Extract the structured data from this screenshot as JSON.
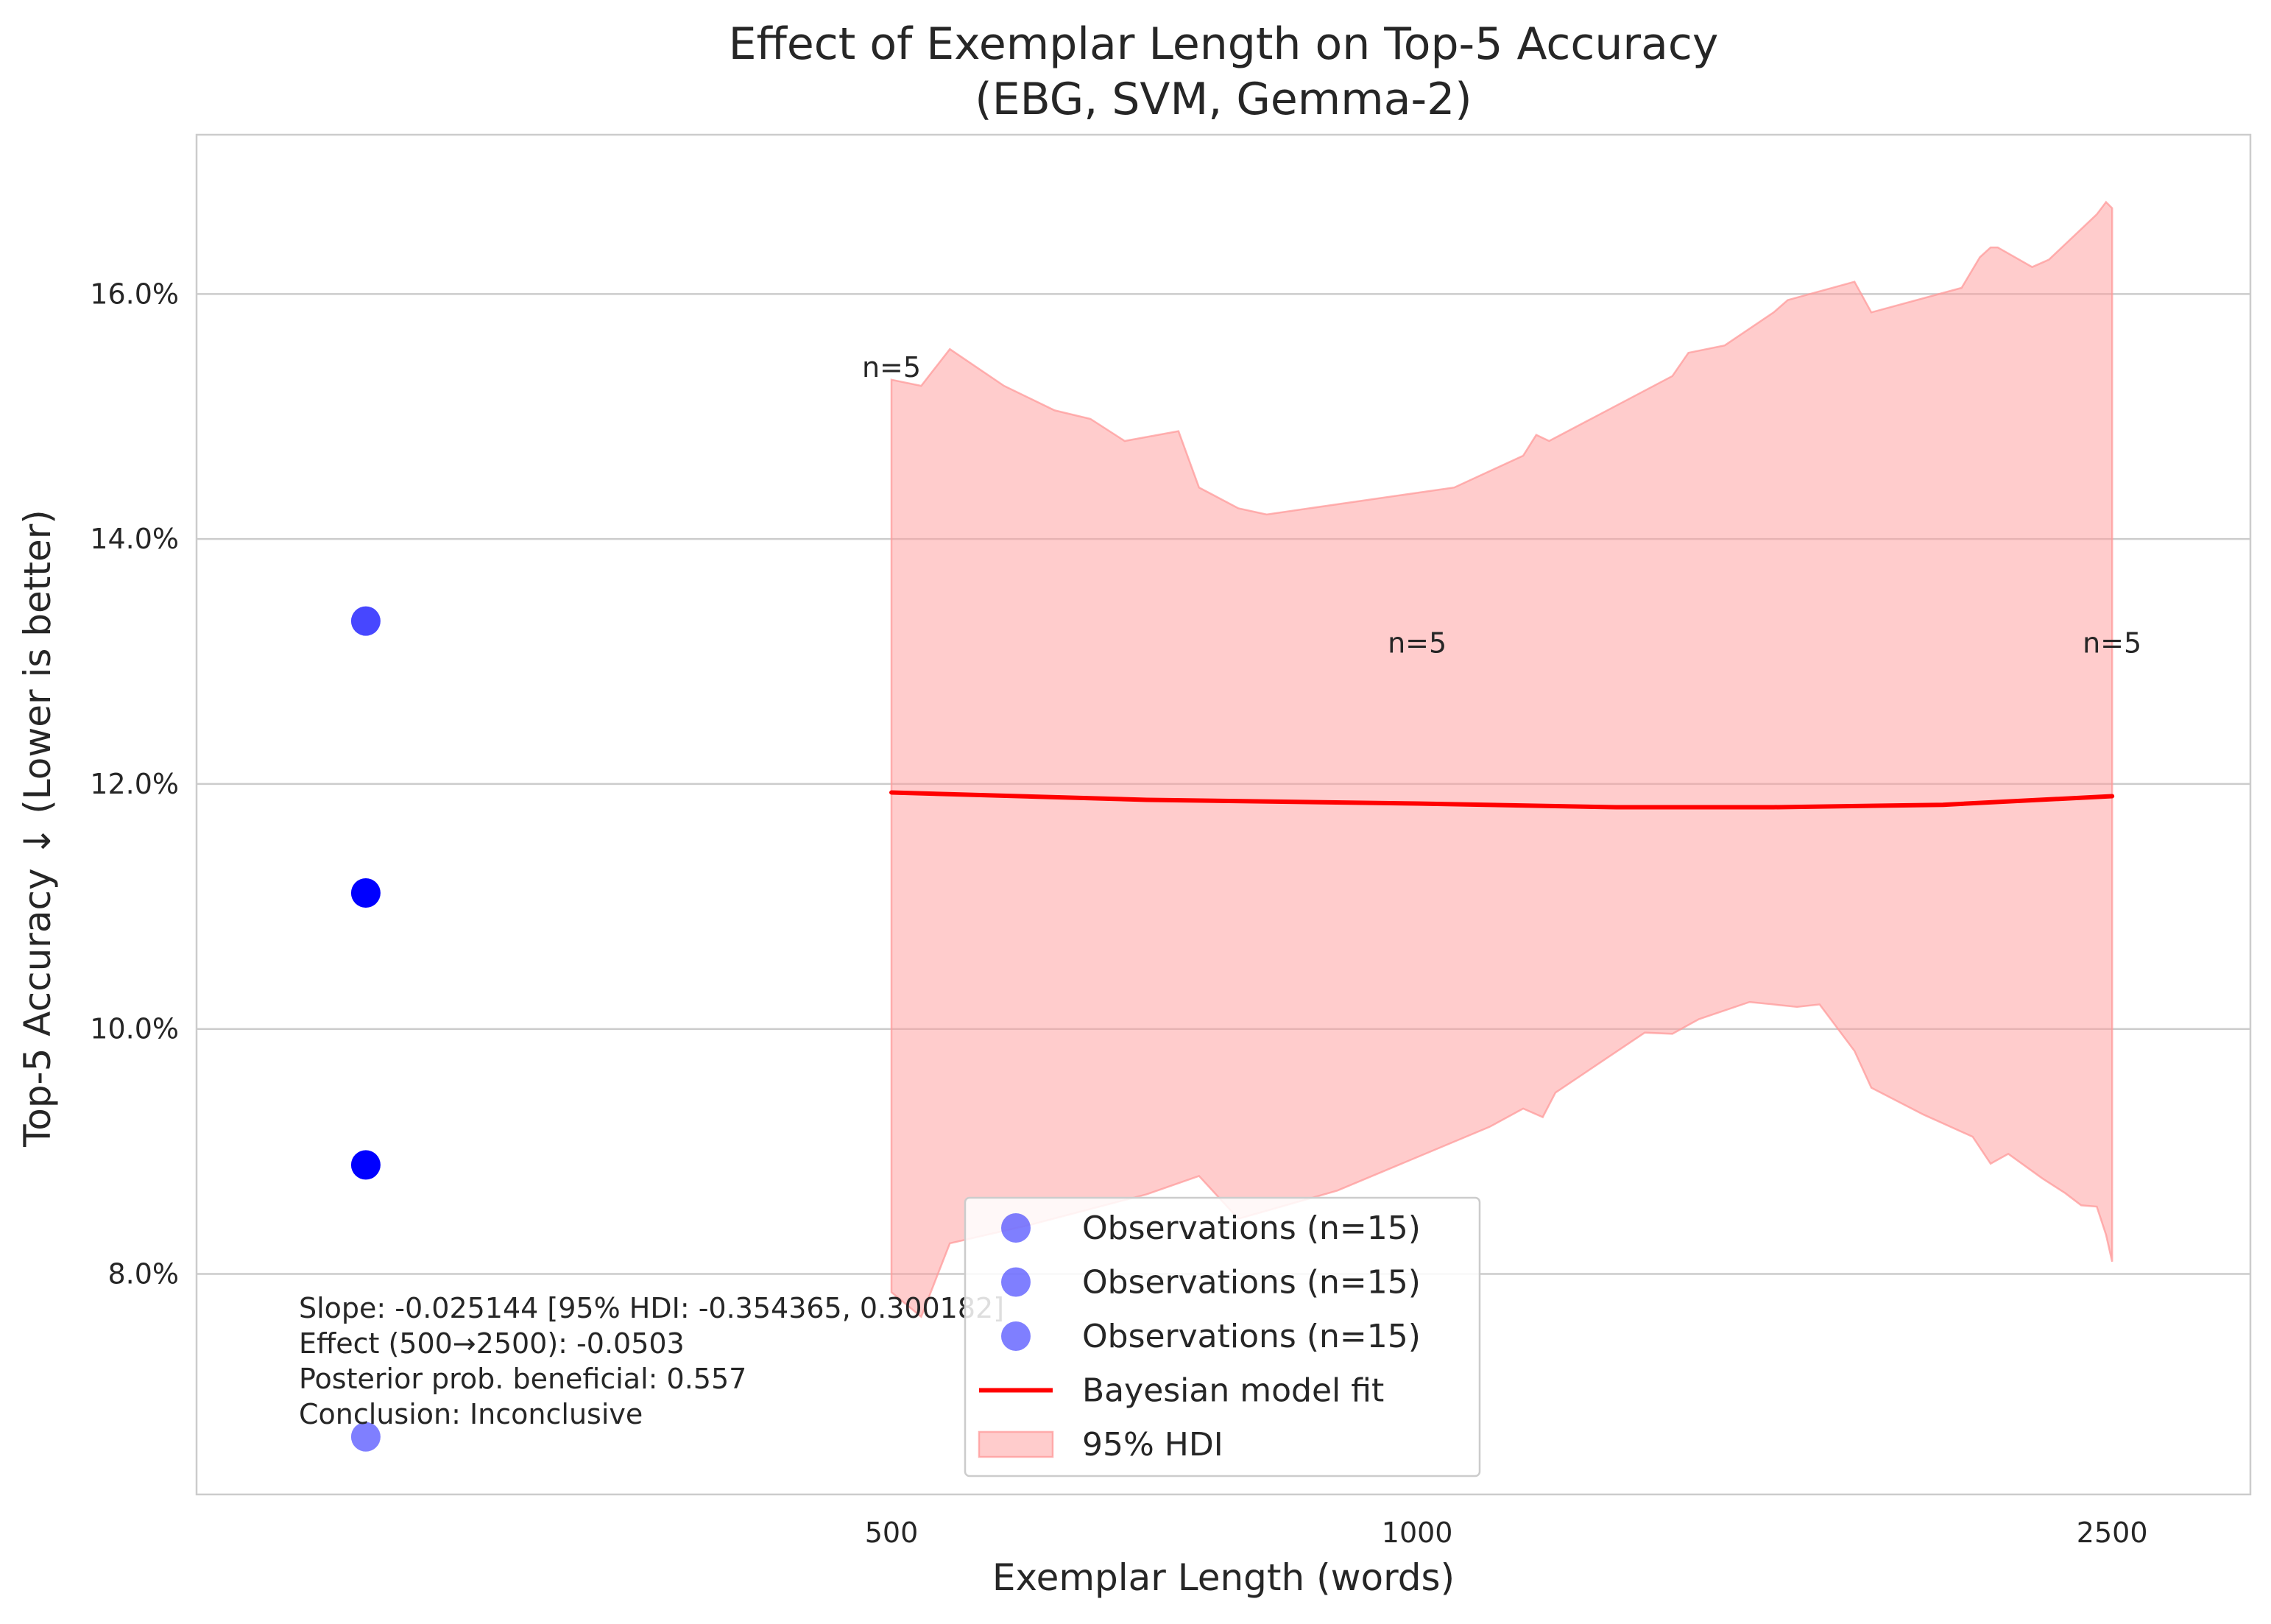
{
  "chart_data": {
    "type": "line",
    "title": "Effect of Exemplar Length on Top-5 Accuracy",
    "subtitle": "(EBG, SVM, Gemma-2)",
    "xlabel": "Exemplar Length (words)",
    "ylabel": "Top-5 Accuracy ↓ (Lower is better)",
    "x_scale": "log",
    "xlim": [
      200,
      3000
    ],
    "ylim": [
      6.2,
      17.3
    ],
    "x_ticks": [
      {
        "value": 500,
        "label": "500"
      },
      {
        "value": 1000,
        "label": "1000"
      },
      {
        "value": 2500,
        "label": "2500"
      }
    ],
    "y_ticks": [
      {
        "value": 8,
        "label": "8.0%"
      },
      {
        "value": 10,
        "label": "10.0%"
      },
      {
        "value": 12,
        "label": "12.0%"
      },
      {
        "value": 14,
        "label": "14.0%"
      },
      {
        "value": 16,
        "label": "16.0%"
      }
    ],
    "grid": "horizontal",
    "observations": {
      "x": 250,
      "points": [
        {
          "y": 13.33,
          "opacity": 0.72
        },
        {
          "y": 11.11,
          "opacity": 1.0
        },
        {
          "y": 8.89,
          "opacity": 1.0
        },
        {
          "y": 6.67,
          "opacity": 0.5
        }
      ],
      "color": "#0000ff"
    },
    "fit_line": {
      "color": "#ff0000",
      "x": [
        500,
        700,
        1000,
        1300,
        1600,
        2000,
        2500
      ],
      "y": [
        11.93,
        11.87,
        11.84,
        11.81,
        11.81,
        11.83,
        11.9
      ]
    },
    "hdi_band": {
      "color": "#ff9999",
      "upper": {
        "x": [
          500,
          520,
          540,
          580,
          620,
          650,
          680,
          730,
          750,
          790,
          820,
          1050,
          1150,
          1170,
          1190,
          1400,
          1430,
          1500,
          1600,
          1630,
          1780,
          1820,
          2050,
          2100,
          2130,
          2150,
          2250,
          2300,
          2450,
          2480,
          2500
        ],
        "y": [
          15.3,
          15.25,
          15.55,
          15.25,
          15.05,
          14.98,
          14.8,
          14.88,
          14.42,
          14.25,
          14.2,
          14.42,
          14.68,
          14.85,
          14.8,
          15.33,
          15.52,
          15.58,
          15.85,
          15.95,
          16.1,
          15.85,
          16.05,
          16.3,
          16.38,
          16.38,
          16.22,
          16.28,
          16.65,
          16.75,
          16.7
        ]
      },
      "lower": {
        "x": [
          500,
          520,
          540,
          600,
          700,
          750,
          790,
          900,
          1100,
          1150,
          1180,
          1200,
          1350,
          1400,
          1450,
          1550,
          1650,
          1700,
          1780,
          1820,
          1950,
          2080,
          2130,
          2180,
          2280,
          2350,
          2400,
          2450,
          2480,
          2500
        ],
        "y": [
          7.85,
          7.65,
          8.25,
          8.4,
          8.65,
          8.8,
          8.45,
          8.68,
          9.2,
          9.35,
          9.28,
          9.48,
          9.97,
          9.96,
          10.08,
          10.22,
          10.18,
          10.2,
          9.82,
          9.52,
          9.3,
          9.12,
          8.9,
          8.98,
          8.78,
          8.66,
          8.56,
          8.55,
          8.32,
          8.1
        ]
      }
    },
    "annotations": [
      {
        "text": "n=5",
        "x": 500,
        "y": 15.4
      },
      {
        "text": "n=5",
        "x": 1000,
        "y": 13.15
      },
      {
        "text": "n=5",
        "x": 2500,
        "y": 13.15
      }
    ],
    "stats_text": [
      "Slope: -0.025144 [95% HDI: -0.354365, 0.300182]",
      "Effect (500→2500): -0.0503",
      "Posterior prob. beneficial: 0.557",
      "Conclusion: Inconclusive"
    ],
    "legend": {
      "position": "lower center",
      "entries": [
        {
          "label": "Observations (n=15)",
          "kind": "marker"
        },
        {
          "label": "Observations (n=15)",
          "kind": "marker"
        },
        {
          "label": "Observations (n=15)",
          "kind": "marker"
        },
        {
          "label": "Bayesian model fit",
          "kind": "line"
        },
        {
          "label": "95% HDI",
          "kind": "patch"
        }
      ]
    }
  }
}
